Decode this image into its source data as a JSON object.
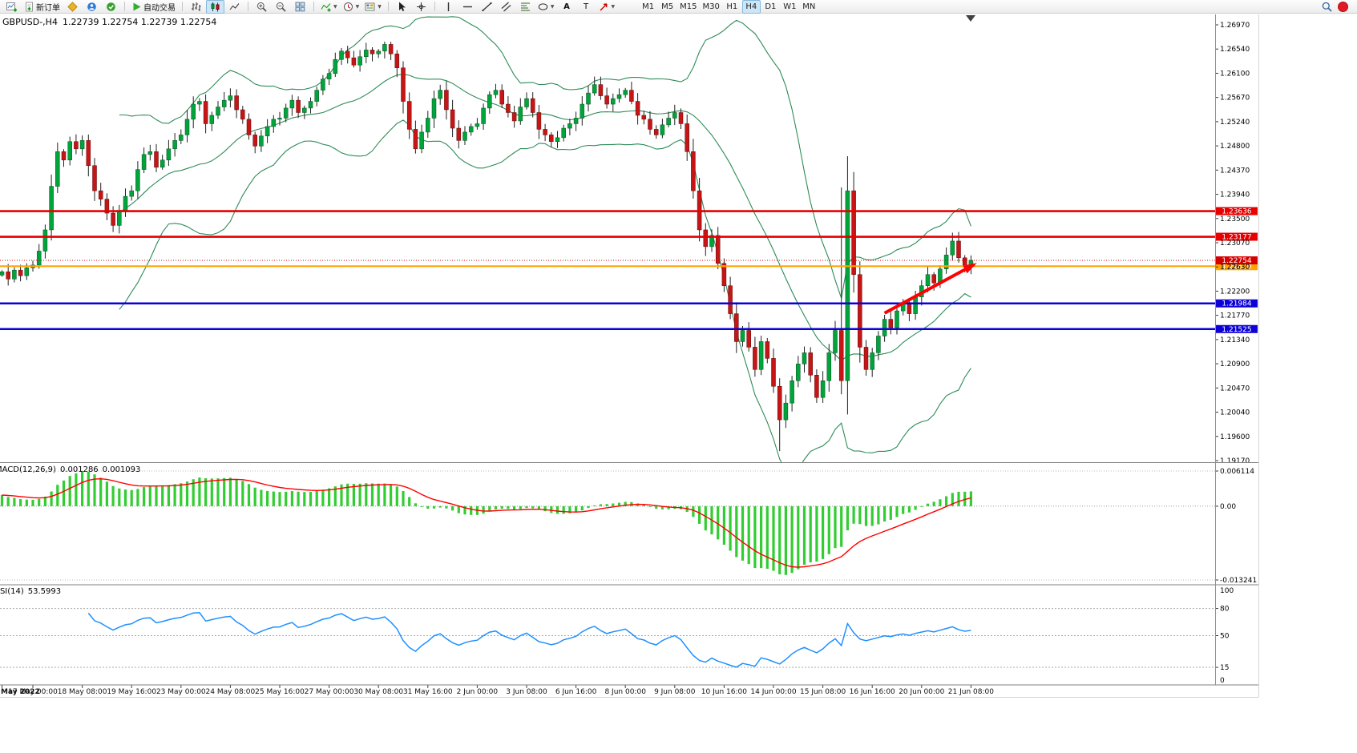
{
  "toolbar": {
    "new_order_label": "新订单",
    "autotrading_label": "自动交易",
    "text_tool_glyph": "A",
    "label_tool_glyph": "T",
    "timeframes": [
      "M1",
      "M5",
      "M15",
      "M30",
      "H1",
      "H4",
      "D1",
      "W1",
      "MN"
    ],
    "active_timeframe": "H4"
  },
  "chart_header": {
    "symbol_period": "GBPUSD-,H4",
    "ohlc": "1.22739 1.22754 1.22739 1.22754"
  },
  "chart_data": {
    "type": "candlestick",
    "symbol": "GBPUSD-",
    "period": "H4",
    "x_labels": [
      "May 2022",
      "17 May 00:00",
      "18 May 08:00",
      "19 May 16:00",
      "23 May 00:00",
      "24 May 08:00",
      "25 May 16:00",
      "27 May 00:00",
      "30 May 08:00",
      "31 May 16:00",
      "2 Jun 00:00",
      "3 Jun 08:00",
      "6 Jun 16:00",
      "8 Jun 00:00",
      "9 Jun 08:00",
      "10 Jun 16:00",
      "14 Jun 00:00",
      "15 Jun 08:00",
      "16 Jun 16:00",
      "20 Jun 00:00",
      "21 Jun 08:00"
    ],
    "bars_per_label": 8,
    "first_label_bar": 5,
    "price_scale": [
      "1.26970",
      "1.26540",
      "1.26100",
      "1.25670",
      "1.25240",
      "1.24800",
      "1.24370",
      "1.23940",
      "1.23500",
      "1.23070",
      "1.22630",
      "1.22200",
      "1.21770",
      "1.21340",
      "1.20900",
      "1.20470",
      "1.20040",
      "1.19600",
      "1.19170"
    ],
    "price_range": {
      "top": 1.2697,
      "bottom": 1.1917
    },
    "closes": [
      1.2255,
      1.2242,
      1.2258,
      1.2248,
      1.2262,
      1.2267,
      1.2292,
      1.233,
      1.2408,
      1.247,
      1.2455,
      1.2488,
      1.2475,
      1.249,
      1.2445,
      1.24,
      1.2385,
      1.236,
      1.2338,
      1.2365,
      1.239,
      1.24,
      1.2438,
      1.2465,
      1.247,
      1.2442,
      1.2455,
      1.2475,
      1.249,
      1.25,
      1.2528,
      1.2555,
      1.256,
      1.252,
      1.2535,
      1.255,
      1.2562,
      1.257,
      1.2545,
      1.2528,
      1.25,
      1.248,
      1.2498,
      1.2515,
      1.2528,
      1.253,
      1.2548,
      1.2562,
      1.254,
      1.2548,
      1.256,
      1.258,
      1.26,
      1.261,
      1.2635,
      1.265,
      1.2638,
      1.2625,
      1.264,
      1.2652,
      1.2645,
      1.265,
      1.2662,
      1.2645,
      1.262,
      1.256,
      1.251,
      1.2475,
      1.2505,
      1.253,
      1.2565,
      1.258,
      1.2545,
      1.2512,
      1.249,
      1.2505,
      1.2515,
      1.252,
      1.2548,
      1.2572,
      1.258,
      1.2555,
      1.254,
      1.2525,
      1.255,
      1.2565,
      1.254,
      1.251,
      1.25,
      1.2488,
      1.2495,
      1.2512,
      1.252,
      1.253,
      1.2555,
      1.2575,
      1.259,
      1.257,
      1.2555,
      1.2565,
      1.2572,
      1.258,
      1.256,
      1.2535,
      1.2528,
      1.251,
      1.25,
      1.2518,
      1.253,
      1.254,
      1.252,
      1.247,
      1.24,
      1.233,
      1.23,
      1.232,
      1.227,
      1.223,
      1.218,
      1.213,
      1.215,
      1.212,
      1.208,
      1.213,
      1.21,
      1.205,
      1.199,
      1.202,
      1.206,
      1.209,
      1.211,
      1.207,
      1.203,
      1.206,
      1.211,
      1.215,
      1.206,
      1.24,
      1.225,
      1.212,
      1.208,
      1.211,
      1.214,
      1.217,
      1.2155,
      1.2185,
      1.22,
      1.218,
      1.221,
      1.223,
      1.225,
      1.2235,
      1.226,
      1.2285,
      1.231,
      1.228,
      1.2265,
      1.22754
    ],
    "wick_overrides": {
      "13": {
        "h": 1.2499
      },
      "62": {
        "h": 1.2667
      },
      "126": {
        "l": 1.1934
      },
      "136": {
        "h": 1.2406
      },
      "154": {
        "h": 1.2325
      }
    },
    "levels": [
      {
        "price": 1.23636,
        "label": "1.23636",
        "color": "#e60000",
        "width": 2.6
      },
      {
        "price": 1.23177,
        "label": "1.23177",
        "color": "#e60000",
        "width": 2.6
      },
      {
        "price": 1.2265,
        "label": "1.22650",
        "color": "#ffa500",
        "width": 2.2
      },
      {
        "price": 1.21984,
        "label": "1.21984",
        "color": "#0d00d6",
        "width": 2.6
      },
      {
        "price": 1.21525,
        "label": "1.21525",
        "color": "#0d00d6",
        "width": 2.6
      }
    ],
    "current_price": {
      "value": 1.22754,
      "label": "1.22754",
      "color": "#d40000"
    },
    "bollinger": {
      "period": 20,
      "deviation": 2,
      "color": "#2e8b57"
    },
    "trend_arrow": {
      "from_bar": 143,
      "from_price": 1.2181,
      "to_bar": 157.5,
      "to_price": 1.2268,
      "color": "#ff0000"
    },
    "colors": {
      "up": "#00a43b",
      "down": "#c71515",
      "wick": "#222222",
      "macd_hist": "#32cd32",
      "macd_signal": "#ff0000",
      "rsi": "#1e90ff"
    },
    "macd": {
      "label": "MACD(12,26,9)",
      "value_main": "0.001286",
      "value_signal": "0.001093",
      "scale_top": "0.006114",
      "scale_zero": "0.00",
      "scale_bottom": "-0.013241",
      "fast": 12,
      "slow": 26,
      "signal": 9
    },
    "rsi": {
      "label": "RSI(14)",
      "value": "53.5993",
      "period": 14,
      "levels": [
        80,
        50,
        15
      ],
      "scale_top": "100",
      "scale_bottom": "0"
    }
  }
}
